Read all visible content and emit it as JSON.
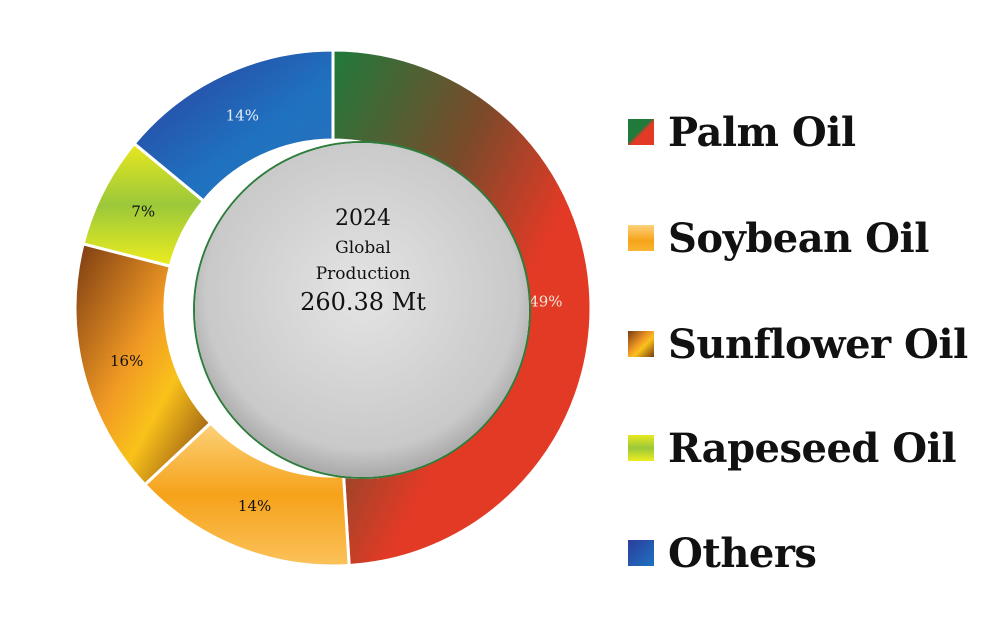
{
  "chart_data": {
    "type": "pie",
    "style": "donut",
    "categories": [
      "Palm Oil",
      "Soybean Oil",
      "Sunflower Oil",
      "Rapeseed Oil",
      "Others"
    ],
    "values": [
      49,
      14,
      16,
      7,
      14
    ],
    "value_labels": [
      "49%",
      "14%",
      "16%",
      "7%",
      "14%"
    ],
    "colors": [
      "#e33a26",
      "#f7a81e",
      "#c2651c",
      "#e6e21c",
      "#2761b3"
    ],
    "center": {
      "year": "2024",
      "line1": "Global",
      "line2": "Production",
      "total": "260.38 Mt"
    },
    "legend_position": "right"
  }
}
